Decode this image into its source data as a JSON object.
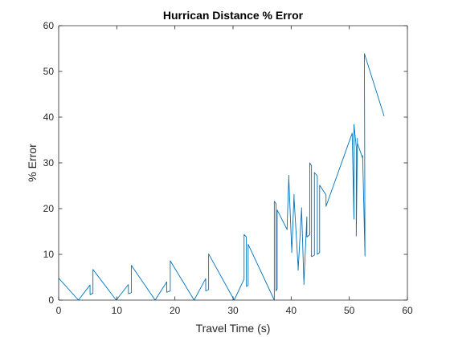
{
  "chart_data": {
    "type": "line",
    "title": "Hurrican Distance % Error",
    "xlabel": "Travel Time (s)",
    "ylabel": "% Error",
    "xlim": [
      0,
      60
    ],
    "ylim": [
      0,
      60
    ],
    "xticks": [
      0,
      10,
      20,
      30,
      40,
      50,
      60
    ],
    "yticks": [
      0,
      10,
      20,
      30,
      40,
      50,
      60
    ],
    "grid": false,
    "legend": "none",
    "colors": {
      "line": "#0072BD",
      "axes": "#262626",
      "background": "#ffffff"
    },
    "series": [
      {
        "x": [
          0,
          3.4,
          5.4,
          5.4,
          5.9,
          5.9,
          9.9,
          12.0,
          12.0,
          12.5,
          12.5,
          16.6,
          18.6,
          18.6,
          19.2,
          19.2,
          23.3,
          25.3,
          25.3,
          25.8,
          25.8,
          30.2,
          31.9,
          31.9,
          32.3,
          32.3,
          32.6,
          32.6,
          37.1,
          37.1,
          37.4,
          37.4,
          37.6,
          37.6,
          39.3,
          39.3,
          39.6,
          39.6,
          40.1,
          40.1,
          40.5,
          40.5,
          41.2,
          41.2,
          41.8,
          41.8,
          42.2,
          42.2,
          42.7,
          42.7,
          43.2,
          43.2,
          43.5,
          43.5,
          44.0,
          44.0,
          44.5,
          44.5,
          44.9,
          44.9,
          46.0,
          46.0,
          50.5,
          50.8,
          50.8,
          51.2,
          51.2,
          51.4,
          51.4,
          52.3,
          52.3,
          52.7,
          52.7,
          52.6,
          52.6,
          56.0
        ],
        "y": [
          4.8,
          0,
          3.3,
          1.2,
          1.5,
          6.7,
          0,
          3.4,
          1.4,
          1.6,
          7.6,
          0,
          4.0,
          1.7,
          2.0,
          8.6,
          0,
          4.7,
          2.0,
          2.3,
          10.1,
          0,
          4.6,
          14.3,
          13.8,
          3.0,
          3.2,
          12.2,
          0,
          21.6,
          21.1,
          2.0,
          2.5,
          19.7,
          15.4,
          15.9,
          27.3,
          26.6,
          10.7,
          10.4,
          23.1,
          22.3,
          7.2,
          6.5,
          20.2,
          19.6,
          3.4,
          3.9,
          18.2,
          13.8,
          14.3,
          30.0,
          29.4,
          9.5,
          9.8,
          27.9,
          27.1,
          10.0,
          10.4,
          25.1,
          23.0,
          20.5,
          36.5,
          17.7,
          38.4,
          33.5,
          14.0,
          35.4,
          34.3,
          31.0,
          31.6,
          9.6,
          9.6,
          53.9,
          53.9,
          40.2
        ]
      }
    ]
  }
}
